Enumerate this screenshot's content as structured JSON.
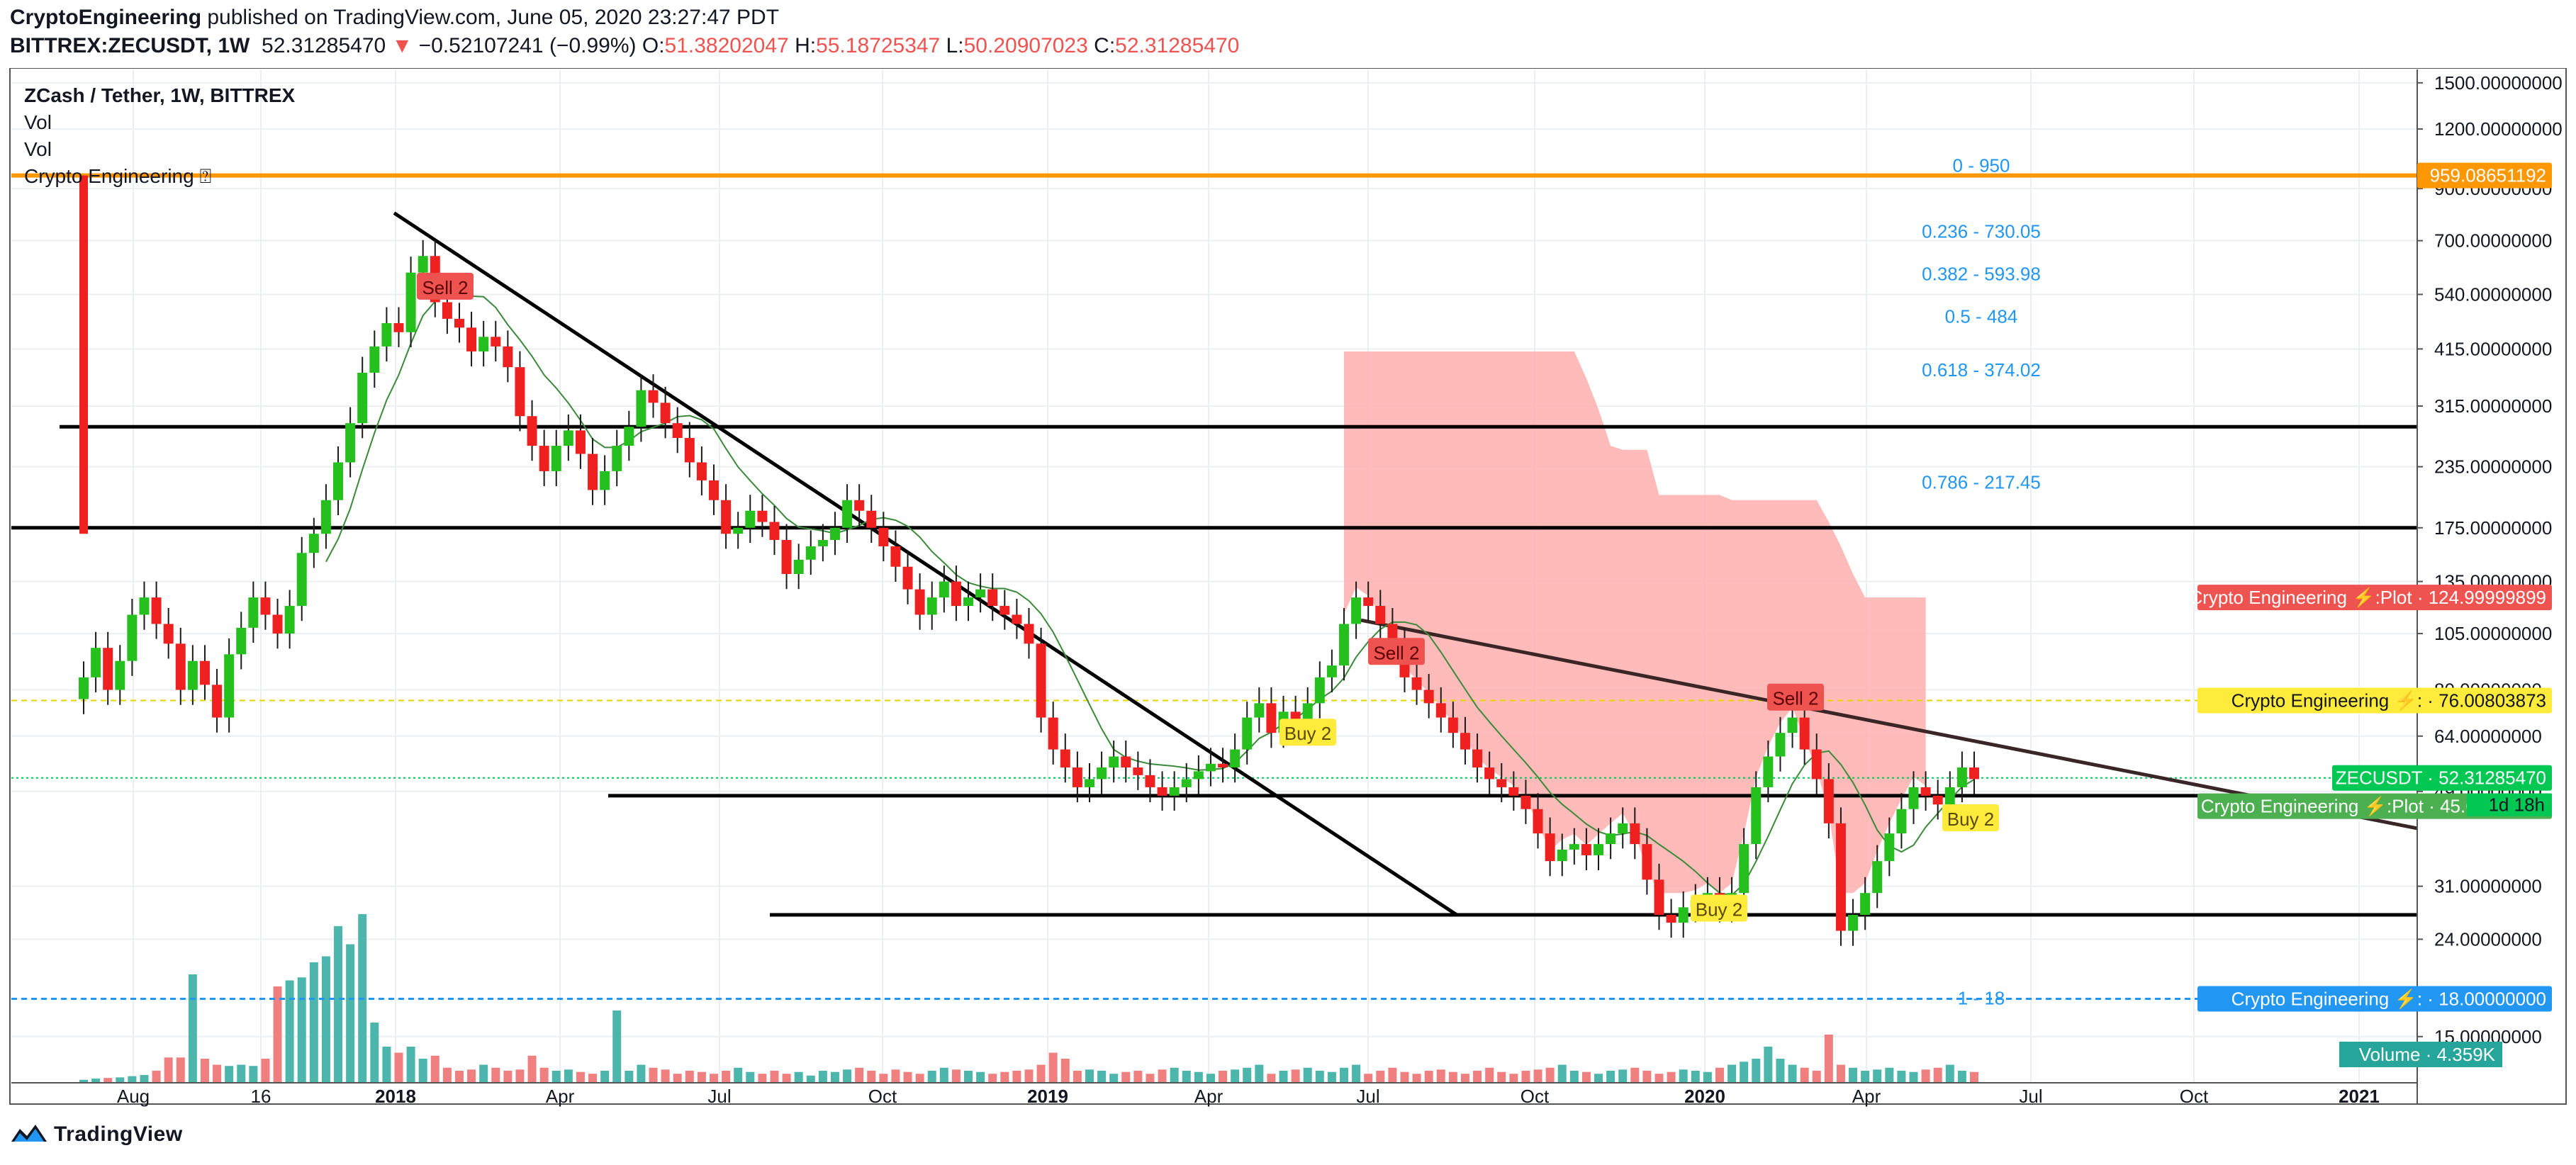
{
  "header": {
    "publisher": "CryptoEngineering",
    "published_text": "published on TradingView.com, June 05, 2020 23:27:47 PDT",
    "symbol_line": "BITTREX:ZECUSDT, 1W",
    "last_price": "52.31285470",
    "change_arrow": "▼",
    "change": "−0.52107241 (−0.99%)",
    "o_label": "O:",
    "o_value": "51.38202047",
    "h_label": "H:",
    "h_value": "55.18725347",
    "l_label": "L:",
    "l_value": "50.20907023",
    "c_label": "C:",
    "c_value": "52.31285470"
  },
  "legend": {
    "title": "ZCash / Tether, 1W, BITTREX",
    "vol1": "Vol",
    "vol2": "Vol",
    "indicator": "Crypto Engineering ⍰"
  },
  "footer": {
    "brand": "TradingView"
  },
  "colors": {
    "up": "#26c01e",
    "down": "#ef2020",
    "vol_up": "#4db6ac",
    "vol_down": "#f08080",
    "fib": "#2196f3",
    "orange": "#ff9800",
    "cloud": "#ffb3b3"
  },
  "chart_data": {
    "type": "candlestick",
    "title": "ZCash / Tether, 1W, BITTREX",
    "y_scale": "log",
    "ylim": [
      12,
      1600
    ],
    "y_ticks": [
      "1500.00000000",
      "1200.00000000",
      "900.00000000",
      "700.00000000",
      "540.00000000",
      "415.00000000",
      "315.00000000",
      "235.00000000",
      "175.00000000",
      "135.00000000",
      "105.00000000",
      "80.00000000",
      "64.00000000",
      "49.00000000",
      "31.00000000",
      "24.00000000",
      "18.00000000",
      "15.00000000"
    ],
    "x_ticks": [
      "Aug",
      "16",
      "2018",
      "Apr",
      "Jul",
      "Oct",
      "2019",
      "Apr",
      "Jul",
      "Oct",
      "2020",
      "Apr",
      "Jul",
      "Oct",
      "2021"
    ],
    "x_ticks_bold": [
      "2018",
      "2019",
      "2020",
      "2021"
    ],
    "close_series": [
      85,
      98,
      80,
      92,
      115,
      125,
      110,
      100,
      80,
      92,
      82,
      70,
      95,
      108,
      125,
      115,
      105,
      120,
      155,
      170,
      200,
      240,
      290,
      370,
      420,
      470,
      450,
      600,
      650,
      520,
      480,
      460,
      410,
      440,
      420,
      380,
      300,
      260,
      230,
      260,
      280,
      250,
      210,
      230,
      260,
      285,
      340,
      320,
      290,
      270,
      240,
      220,
      200,
      170,
      175,
      190,
      180,
      165,
      140,
      150,
      160,
      165,
      175,
      200,
      190,
      175,
      160,
      145,
      130,
      115,
      125,
      135,
      120,
      125,
      130,
      120,
      115,
      110,
      100,
      70,
      60,
      55,
      50,
      52,
      55,
      58,
      55,
      53,
      50,
      48,
      50,
      52,
      54,
      56,
      55,
      60,
      70,
      75,
      65,
      72,
      68,
      75,
      85,
      90,
      110,
      125,
      120,
      110,
      100,
      85,
      80,
      75,
      70,
      65,
      60,
      55,
      52,
      50,
      48,
      45,
      40,
      35,
      37,
      38,
      36,
      38,
      40,
      42,
      38,
      32,
      27,
      26,
      28,
      29,
      30,
      28,
      30,
      38,
      50,
      58,
      65,
      70,
      60,
      52,
      42,
      25,
      27,
      30,
      35,
      40,
      45,
      50,
      48,
      46,
      50,
      55,
      52
    ],
    "annotations": [
      "Sell 2",
      "Sell 2",
      "Sell 2",
      "Buy 2",
      "Buy 2",
      "Buy 2"
    ],
    "fib_levels": [
      {
        "label": "0 - 950",
        "value": 950
      },
      {
        "label": "0.236 - 730.05",
        "value": 730.05
      },
      {
        "label": "0.382 - 593.98",
        "value": 593.98
      },
      {
        "label": "0.5 - 484",
        "value": 484
      },
      {
        "label": "0.618 - 374.02",
        "value": 374.02
      },
      {
        "label": "0.786 - 217.45",
        "value": 217.45
      },
      {
        "label": "1 - 18",
        "value": 18
      }
    ],
    "horizontal_levels": [
      285,
      175,
      48,
      27
    ],
    "price_tags": [
      {
        "text": "959.08651192",
        "value": 959.08651192,
        "color": "#ff9800"
      },
      {
        "text": "Crypto Engineering ⚡:Plot · 124.99999899",
        "value": 124.99999899,
        "color": "#ef5350"
      },
      {
        "text": "Crypto Engineering ⚡: · 76.00803873",
        "value": 76.00803873,
        "color": "#ffeb3b"
      },
      {
        "text": "ZECUSDT · 52.31285470",
        "value": 52.3128547,
        "color": "#00c853"
      },
      {
        "text": "Crypto Engineering ⚡:Plot · 45.62311039",
        "value": 45.62311039,
        "color": "#4caf50"
      },
      {
        "text": "Crypto Engineering ⚡: · 18.00000000",
        "value": 18.0,
        "color": "#2196f3"
      }
    ],
    "countdown": "1d 18h",
    "volume_label": "Volume · 4.359K"
  }
}
